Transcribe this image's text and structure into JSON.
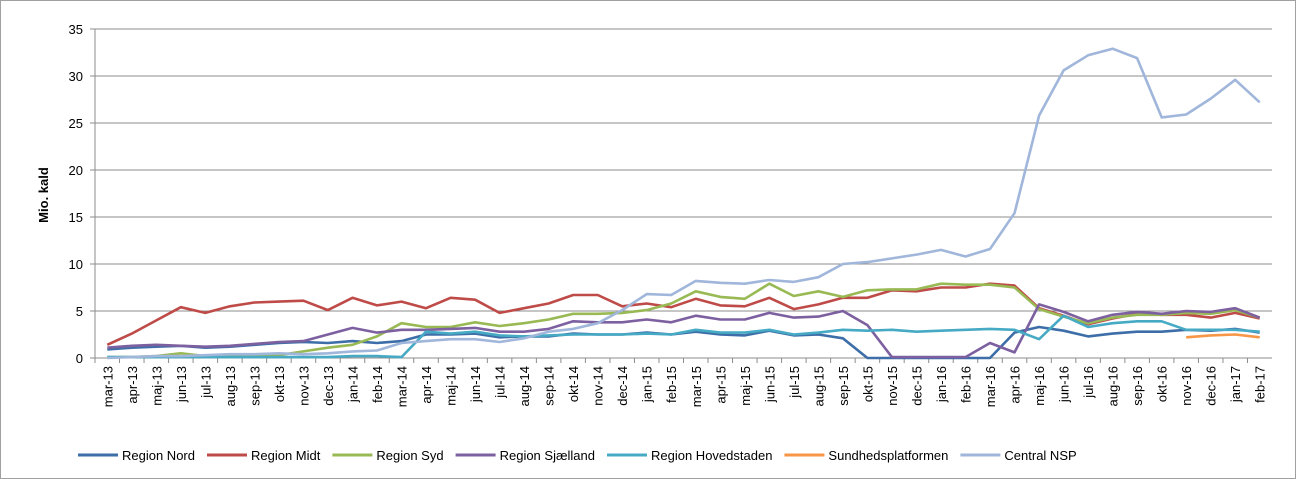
{
  "chart_data": {
    "type": "line",
    "y_label": "Mio. kald",
    "categories": [
      "mar-13",
      "apr-13",
      "maj-13",
      "jun-13",
      "jul-13",
      "aug-13",
      "sep-13",
      "okt-13",
      "nov-13",
      "dec-13",
      "jan-14",
      "feb-14",
      "mar-14",
      "apr-14",
      "maj-14",
      "jun-14",
      "jul-14",
      "aug-14",
      "sep-14",
      "okt-14",
      "nov-14",
      "dec-14",
      "jan-15",
      "feb-15",
      "mar-15",
      "apr-15",
      "maj-15",
      "jun-15",
      "jul-15",
      "aug-15",
      "sep-15",
      "okt-15",
      "nov-15",
      "dec-15",
      "jan-16",
      "feb-16",
      "mar-16",
      "apr-16",
      "maj-16",
      "jun-16",
      "jul-16",
      "aug-16",
      "sep-16",
      "okt-16",
      "nov-16",
      "dec-16",
      "jan-17",
      "feb-17"
    ],
    "series": [
      {
        "name": "Region Nord",
        "color": "#3e6ea8",
        "values": [
          0.9,
          1.1,
          1.2,
          1.3,
          1.1,
          1.2,
          1.4,
          1.6,
          1.7,
          1.6,
          1.8,
          1.6,
          1.8,
          2.5,
          2.5,
          2.6,
          2.2,
          2.3,
          2.3,
          2.6,
          2.5,
          2.5,
          2.7,
          2.5,
          2.8,
          2.5,
          2.4,
          2.9,
          2.4,
          2.5,
          2.1,
          0,
          0,
          0,
          0,
          0,
          0,
          2.7,
          3.3,
          2.9,
          2.3,
          2.6,
          2.8,
          2.8,
          3.0,
          2.9,
          3.1,
          2.7
        ]
      },
      {
        "name": "Region Midt",
        "color": "#be4b48",
        "values": [
          1.4,
          2.6,
          4.0,
          5.4,
          4.8,
          5.5,
          5.9,
          6.0,
          6.1,
          5.1,
          6.4,
          5.6,
          6.0,
          5.3,
          6.4,
          6.2,
          4.8,
          5.3,
          5.8,
          6.7,
          6.7,
          5.5,
          5.8,
          5.4,
          6.3,
          5.6,
          5.5,
          6.4,
          5.2,
          5.7,
          6.4,
          6.4,
          7.2,
          7.1,
          7.5,
          7.5,
          7.9,
          7.7,
          5.3,
          4.5,
          3.6,
          4.2,
          4.7,
          4.6,
          4.6,
          4.3,
          4.8,
          4.2
        ]
      },
      {
        "name": "Region Syd",
        "color": "#98b954",
        "values": [
          0.1,
          0.1,
          0.2,
          0.5,
          0.2,
          0.3,
          0.3,
          0.3,
          0.7,
          1.1,
          1.4,
          2.3,
          3.7,
          3.3,
          3.3,
          3.8,
          3.4,
          3.7,
          4.1,
          4.7,
          4.7,
          4.8,
          5.1,
          5.8,
          7.1,
          6.5,
          6.3,
          7.9,
          6.6,
          7.1,
          6.5,
          7.2,
          7.3,
          7.3,
          7.9,
          7.8,
          7.8,
          7.5,
          5.2,
          4.4,
          3.7,
          4.3,
          4.6,
          4.6,
          4.8,
          4.7,
          5.1,
          4.3
        ]
      },
      {
        "name": "Region Sjælland",
        "color": "#7d60a0",
        "values": [
          1.1,
          1.3,
          1.4,
          1.3,
          1.2,
          1.3,
          1.5,
          1.7,
          1.8,
          2.5,
          3.2,
          2.7,
          3.0,
          3.0,
          3.1,
          3.2,
          2.8,
          2.8,
          3.1,
          3.9,
          3.8,
          3.8,
          4.1,
          3.8,
          4.5,
          4.1,
          4.1,
          4.8,
          4.3,
          4.4,
          5.0,
          3.5,
          0.1,
          0.1,
          0.1,
          0.1,
          1.6,
          0.6,
          5.7,
          4.9,
          3.9,
          4.6,
          4.9,
          4.7,
          5.0,
          4.9,
          5.3,
          4.3
        ]
      },
      {
        "name": "Region Hovedstaden",
        "color": "#46aac5",
        "values": [
          0.1,
          0.1,
          0.1,
          0.1,
          0.1,
          0.1,
          0.1,
          0.1,
          0.1,
          0.1,
          0.2,
          0.2,
          0.1,
          2.8,
          2.6,
          2.8,
          2.4,
          2.3,
          2.4,
          2.5,
          2.5,
          2.5,
          2.6,
          2.5,
          3.0,
          2.7,
          2.7,
          3.0,
          2.5,
          2.7,
          3.0,
          2.9,
          3.0,
          2.8,
          2.9,
          3.0,
          3.1,
          3.0,
          2.0,
          4.5,
          3.3,
          3.7,
          3.9,
          3.9,
          3.0,
          3.0,
          3.0,
          2.8
        ]
      },
      {
        "name": "Sundhedsplatformen",
        "color": "#f79646",
        "values": [
          null,
          null,
          null,
          null,
          null,
          null,
          null,
          null,
          null,
          null,
          null,
          null,
          null,
          null,
          null,
          null,
          null,
          null,
          null,
          null,
          null,
          null,
          null,
          null,
          null,
          null,
          null,
          null,
          null,
          null,
          null,
          null,
          null,
          null,
          null,
          null,
          null,
          null,
          null,
          null,
          null,
          null,
          null,
          null,
          2.2,
          2.4,
          2.5,
          2.2
        ]
      },
      {
        "name": "Central NSP",
        "color": "#a0b6da",
        "values": [
          0,
          0.1,
          0.2,
          0.2,
          0.3,
          0.4,
          0.4,
          0.5,
          0.4,
          0.5,
          0.7,
          0.8,
          1.6,
          1.8,
          2.0,
          2.0,
          1.7,
          2.1,
          2.8,
          3.1,
          3.7,
          5.1,
          6.8,
          6.7,
          8.2,
          8.0,
          7.9,
          8.3,
          8.1,
          8.6,
          10.0,
          10.2,
          10.6,
          11.0,
          11.5,
          10.8,
          11.6,
          15.4,
          25.8,
          30.6,
          32.2,
          32.9,
          31.9,
          25.6,
          25.9,
          27.6,
          29.6,
          27.2
        ]
      }
    ],
    "ylim": [
      0,
      35
    ],
    "yticks": [
      0,
      5,
      10,
      15,
      20,
      25,
      30,
      35
    ],
    "grid": true,
    "legend": "bottom"
  }
}
